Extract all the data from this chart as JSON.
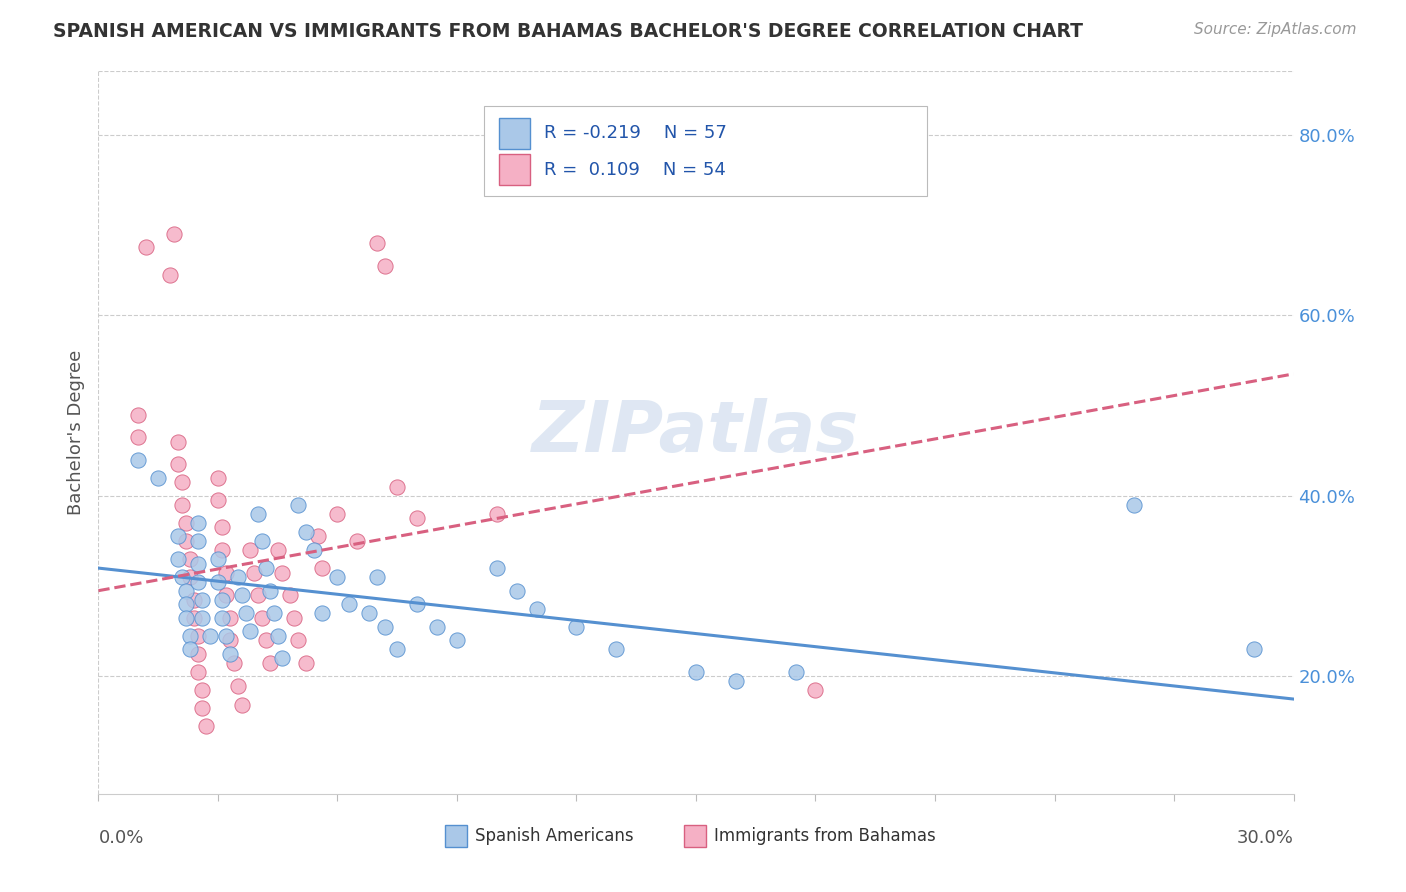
{
  "title": "SPANISH AMERICAN VS IMMIGRANTS FROM BAHAMAS BACHELOR'S DEGREE CORRELATION CHART",
  "source": "Source: ZipAtlas.com",
  "ylabel": "Bachelor's Degree",
  "xlim": [
    0.0,
    0.3
  ],
  "ylim": [
    0.07,
    0.87
  ],
  "right_ytick_vals": [
    0.2,
    0.4,
    0.6,
    0.8
  ],
  "right_ytick_labels": [
    "20.0%",
    "40.0%",
    "60.0%",
    "80.0%"
  ],
  "blue_color": "#aac8e8",
  "pink_color": "#f5b0c5",
  "blue_edge": "#5590d0",
  "pink_edge": "#d86080",
  "watermark": "ZIPatlas",
  "blue_dots": [
    [
      0.01,
      0.44
    ],
    [
      0.015,
      0.42
    ],
    [
      0.02,
      0.355
    ],
    [
      0.02,
      0.33
    ],
    [
      0.021,
      0.31
    ],
    [
      0.022,
      0.295
    ],
    [
      0.022,
      0.28
    ],
    [
      0.022,
      0.265
    ],
    [
      0.023,
      0.245
    ],
    [
      0.023,
      0.23
    ],
    [
      0.025,
      0.37
    ],
    [
      0.025,
      0.35
    ],
    [
      0.025,
      0.325
    ],
    [
      0.025,
      0.305
    ],
    [
      0.026,
      0.285
    ],
    [
      0.026,
      0.265
    ],
    [
      0.028,
      0.245
    ],
    [
      0.03,
      0.33
    ],
    [
      0.03,
      0.305
    ],
    [
      0.031,
      0.285
    ],
    [
      0.031,
      0.265
    ],
    [
      0.032,
      0.245
    ],
    [
      0.033,
      0.225
    ],
    [
      0.035,
      0.31
    ],
    [
      0.036,
      0.29
    ],
    [
      0.037,
      0.27
    ],
    [
      0.038,
      0.25
    ],
    [
      0.04,
      0.38
    ],
    [
      0.041,
      0.35
    ],
    [
      0.042,
      0.32
    ],
    [
      0.043,
      0.295
    ],
    [
      0.044,
      0.27
    ],
    [
      0.045,
      0.245
    ],
    [
      0.046,
      0.22
    ],
    [
      0.05,
      0.39
    ],
    [
      0.052,
      0.36
    ],
    [
      0.054,
      0.34
    ],
    [
      0.056,
      0.27
    ],
    [
      0.06,
      0.31
    ],
    [
      0.063,
      0.28
    ],
    [
      0.068,
      0.27
    ],
    [
      0.07,
      0.31
    ],
    [
      0.072,
      0.255
    ],
    [
      0.075,
      0.23
    ],
    [
      0.08,
      0.28
    ],
    [
      0.085,
      0.255
    ],
    [
      0.09,
      0.24
    ],
    [
      0.1,
      0.32
    ],
    [
      0.105,
      0.295
    ],
    [
      0.11,
      0.275
    ],
    [
      0.12,
      0.255
    ],
    [
      0.13,
      0.23
    ],
    [
      0.15,
      0.205
    ],
    [
      0.16,
      0.195
    ],
    [
      0.175,
      0.205
    ],
    [
      0.26,
      0.39
    ],
    [
      0.29,
      0.23
    ]
  ],
  "pink_dots": [
    [
      0.01,
      0.49
    ],
    [
      0.01,
      0.465
    ],
    [
      0.012,
      0.675
    ],
    [
      0.018,
      0.645
    ],
    [
      0.019,
      0.69
    ],
    [
      0.02,
      0.46
    ],
    [
      0.02,
      0.435
    ],
    [
      0.021,
      0.415
    ],
    [
      0.021,
      0.39
    ],
    [
      0.022,
      0.37
    ],
    [
      0.022,
      0.35
    ],
    [
      0.023,
      0.33
    ],
    [
      0.023,
      0.31
    ],
    [
      0.024,
      0.285
    ],
    [
      0.024,
      0.265
    ],
    [
      0.025,
      0.245
    ],
    [
      0.025,
      0.225
    ],
    [
      0.025,
      0.205
    ],
    [
      0.026,
      0.185
    ],
    [
      0.026,
      0.165
    ],
    [
      0.027,
      0.145
    ],
    [
      0.03,
      0.42
    ],
    [
      0.03,
      0.395
    ],
    [
      0.031,
      0.365
    ],
    [
      0.031,
      0.34
    ],
    [
      0.032,
      0.315
    ],
    [
      0.032,
      0.29
    ],
    [
      0.033,
      0.265
    ],
    [
      0.033,
      0.24
    ],
    [
      0.034,
      0.215
    ],
    [
      0.035,
      0.19
    ],
    [
      0.036,
      0.168
    ],
    [
      0.038,
      0.34
    ],
    [
      0.039,
      0.315
    ],
    [
      0.04,
      0.29
    ],
    [
      0.041,
      0.265
    ],
    [
      0.042,
      0.24
    ],
    [
      0.043,
      0.215
    ],
    [
      0.045,
      0.34
    ],
    [
      0.046,
      0.315
    ],
    [
      0.048,
      0.29
    ],
    [
      0.049,
      0.265
    ],
    [
      0.05,
      0.24
    ],
    [
      0.052,
      0.215
    ],
    [
      0.055,
      0.355
    ],
    [
      0.056,
      0.32
    ],
    [
      0.06,
      0.38
    ],
    [
      0.065,
      0.35
    ],
    [
      0.07,
      0.68
    ],
    [
      0.072,
      0.655
    ],
    [
      0.075,
      0.41
    ],
    [
      0.08,
      0.375
    ],
    [
      0.1,
      0.38
    ],
    [
      0.18,
      0.185
    ]
  ],
  "blue_trend_x": [
    0.0,
    0.3
  ],
  "blue_trend_y": [
    0.32,
    0.175
  ],
  "pink_trend_x": [
    0.0,
    0.3
  ],
  "pink_trend_y": [
    0.295,
    0.535
  ]
}
